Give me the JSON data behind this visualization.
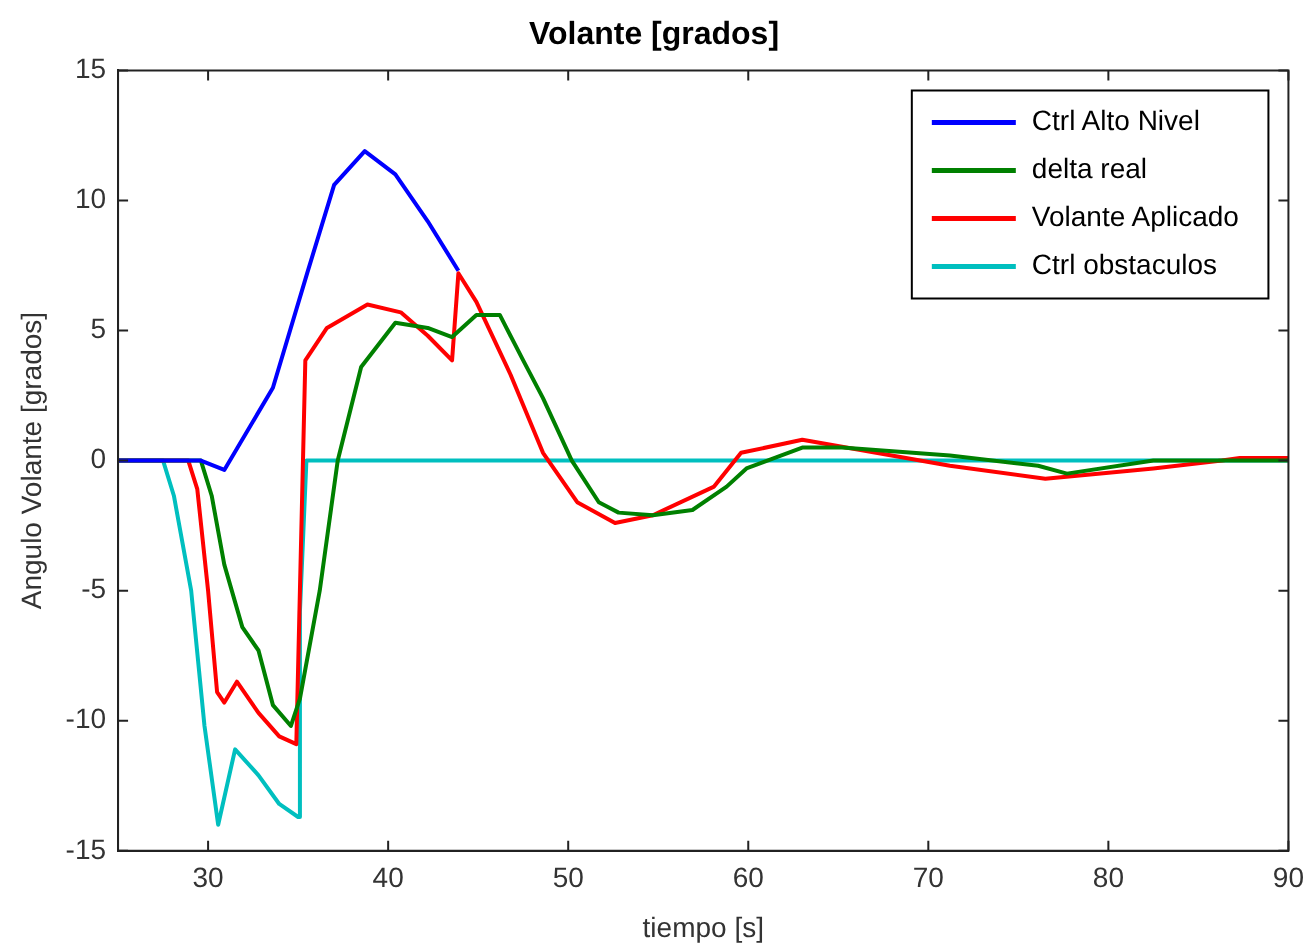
{
  "chart_data": {
    "type": "line",
    "title": "Volante [grados]",
    "xlabel": "tiempo [s]",
    "ylabel": "Angulo Volante [grados]",
    "xlim": [
      25,
      90
    ],
    "ylim": [
      -15,
      15
    ],
    "xticks": [
      30,
      40,
      50,
      60,
      70,
      80,
      90
    ],
    "yticks": [
      -15,
      -10,
      -5,
      0,
      5,
      10,
      15
    ],
    "grid": false,
    "legend": "top right",
    "marker": "none",
    "line_style": "solid",
    "series": [
      {
        "name": "Ctrl Alto Nivel",
        "color": "#0000ff",
        "x": [
          25,
          29.6,
          30.9,
          33.6,
          35.5,
          37,
          38.7,
          40.4,
          42.2,
          43.9
        ],
        "values": [
          0,
          0,
          -0.36,
          2.8,
          7.2,
          10.6,
          11.9,
          11,
          9.2,
          7.3
        ]
      },
      {
        "name": "delta real",
        "color": "#008000",
        "x": [
          25,
          29.6,
          30.2,
          30.9,
          31.9,
          32.8,
          33.6,
          34.6,
          35.1,
          36.2,
          37.2,
          38.5,
          40.4,
          42.2,
          43.55,
          44.9,
          46.2,
          47.5,
          48.6,
          50.2,
          51.7,
          52.8,
          54.7,
          56.9,
          58.8,
          59.9,
          63,
          65.2,
          71.2,
          76.1,
          77.7,
          82.5,
          90
        ],
        "values": [
          0,
          0,
          -1.35,
          -4,
          -6.4,
          -7.3,
          -9.4,
          -10.2,
          -9.15,
          -5,
          0,
          3.6,
          5.3,
          5.1,
          4.75,
          5.6,
          5.6,
          3.85,
          2.4,
          0,
          -1.6,
          -2,
          -2.1,
          -1.9,
          -1,
          -0.3,
          0.5,
          0.5,
          0.2,
          -0.2,
          -0.5,
          0,
          0
        ]
      },
      {
        "name": "Volante Aplicado",
        "color": "#ff0000",
        "x": [
          25,
          28.9,
          29.4,
          30,
          30.5,
          30.9,
          31.6,
          32.8,
          33.95,
          34.9,
          35.1,
          35.4,
          36.6,
          38.85,
          40.7,
          42.2,
          43.55,
          43.9,
          44.9,
          46.8,
          48.6,
          50.5,
          52.6,
          54.7,
          58.1,
          59.6,
          63,
          71.2,
          76.5,
          82.5,
          86.3,
          87.3,
          90
        ],
        "values": [
          0,
          0,
          -1.1,
          -5,
          -8.9,
          -9.3,
          -8.5,
          -9.7,
          -10.6,
          -10.9,
          -5,
          3.85,
          5.1,
          6,
          5.7,
          4.8,
          3.85,
          7.2,
          6.1,
          3.3,
          0.3,
          -1.6,
          -2.4,
          -2.1,
          -1,
          0.3,
          0.8,
          -0.2,
          -0.7,
          -0.3,
          0,
          0.1,
          0.1
        ]
      },
      {
        "name": "Ctrl obstaculos",
        "color": "#00bfbf",
        "x": [
          25,
          27.5,
          28.1,
          29.06,
          29.8,
          30.56,
          31.5,
          32.8,
          33.95,
          35,
          35.1,
          35.46,
          90
        ],
        "values": [
          0,
          0,
          -1.35,
          -5,
          -10.2,
          -14,
          -11.1,
          -12.1,
          -13.2,
          -13.7,
          -5.8,
          0,
          0
        ]
      }
    ]
  }
}
